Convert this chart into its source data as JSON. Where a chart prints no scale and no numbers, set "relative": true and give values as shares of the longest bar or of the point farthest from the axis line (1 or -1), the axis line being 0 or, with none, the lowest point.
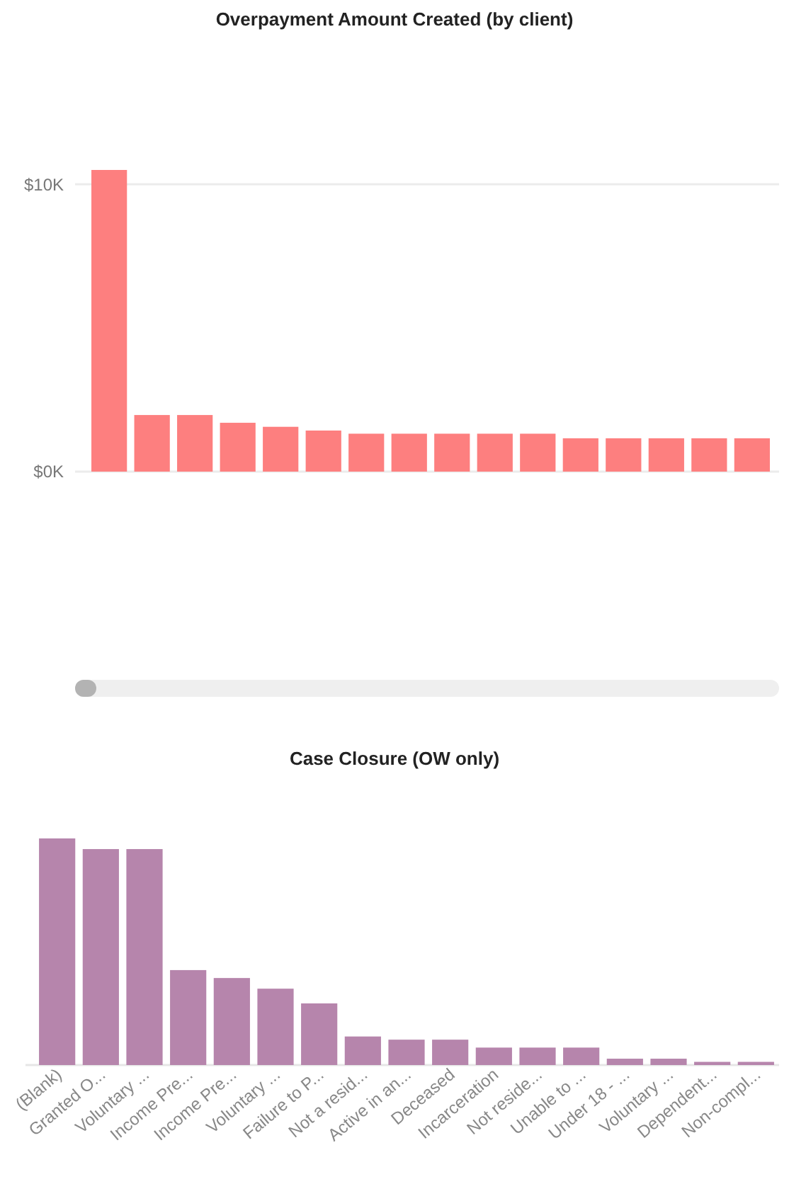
{
  "chart_data": [
    {
      "type": "bar",
      "title": "Overpayment Amount Created (by client)",
      "categories": [
        null,
        null,
        null,
        null,
        null,
        null,
        null,
        null,
        null,
        null,
        null,
        null,
        null,
        null,
        null,
        null
      ],
      "values": [
        10500,
        1970,
        1970,
        1700,
        1560,
        1430,
        1320,
        1320,
        1320,
        1320,
        1320,
        1160,
        1160,
        1160,
        1160,
        1160
      ],
      "color": "#fd7f7f",
      "ylim": [
        0,
        10500
      ],
      "yticks": [
        {
          "value": 0,
          "label": "$0K"
        },
        {
          "value": 10000,
          "label": "$10K"
        }
      ],
      "grid": "y"
    },
    {
      "type": "bar",
      "title": "Case Closure (OW only)",
      "categories": [
        "(Blank)",
        "Granted O...",
        "Voluntary ...",
        "Income Pre...",
        "Income Pre...",
        "Voluntary ...",
        "Failure to P...",
        "Not a resid...",
        "Active in an...",
        "Deceased",
        "Incarceration",
        "Not reside...",
        "Unable to ...",
        "Under 18 - ...",
        "Voluntary ...",
        "Dependent...",
        "Non-compl..."
      ],
      "values": [
        1,
        0.953,
        0.953,
        0.419,
        0.384,
        0.337,
        0.272,
        0.126,
        0.112,
        0.112,
        0.077,
        0.077,
        0.077,
        0.028,
        0.028,
        0.014,
        0.014
      ],
      "color": "#b685ac",
      "relative": true
    }
  ]
}
